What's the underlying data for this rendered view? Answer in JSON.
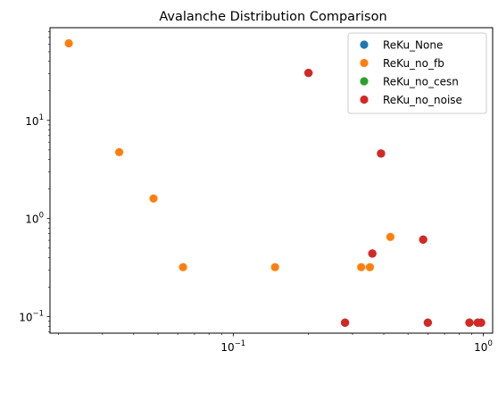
{
  "chart_data": {
    "type": "scatter",
    "title": "Avalanche Distribution Comparison",
    "xlabel": "",
    "ylabel": "",
    "xscale": "log",
    "yscale": "log",
    "xlim": [
      0.0185,
      1.09
    ],
    "ylim": [
      0.068,
      88
    ],
    "grid": false,
    "legend_position": "top-right",
    "x_major_ticks": [
      {
        "value": 0.1,
        "base": "10",
        "exp": "−1"
      },
      {
        "value": 1,
        "base": "10",
        "exp": "0"
      }
    ],
    "y_major_ticks": [
      {
        "value": 0.1,
        "base": "10",
        "exp": "−1"
      },
      {
        "value": 1,
        "base": "10",
        "exp": "0"
      },
      {
        "value": 10,
        "base": "10",
        "exp": "1"
      }
    ],
    "series": [
      {
        "name": "ReKu_None",
        "color": "#1f77b4",
        "points": [
          [
            0.2,
            30.5
          ],
          [
            0.28,
            0.087
          ],
          [
            0.36,
            0.44
          ],
          [
            0.39,
            4.6
          ],
          [
            0.575,
            0.61
          ],
          [
            0.6,
            0.087
          ],
          [
            0.88,
            0.087
          ],
          [
            0.95,
            0.087
          ],
          [
            0.98,
            0.087
          ]
        ]
      },
      {
        "name": "ReKu_no_fb",
        "color": "#ff7f0e",
        "points": [
          [
            0.022,
            61
          ],
          [
            0.035,
            4.75
          ],
          [
            0.048,
            1.6
          ],
          [
            0.063,
            0.32
          ],
          [
            0.147,
            0.32
          ],
          [
            0.2,
            30.5
          ],
          [
            0.28,
            0.087
          ],
          [
            0.325,
            0.32
          ],
          [
            0.352,
            0.32
          ],
          [
            0.36,
            0.44
          ],
          [
            0.39,
            4.6
          ],
          [
            0.425,
            0.65
          ],
          [
            0.575,
            0.61
          ],
          [
            0.6,
            0.087
          ],
          [
            0.88,
            0.087
          ],
          [
            0.95,
            0.087
          ],
          [
            0.98,
            0.087
          ]
        ]
      },
      {
        "name": "ReKu_no_cesn",
        "color": "#2ca02c",
        "points": [
          [
            0.2,
            30.5
          ],
          [
            0.28,
            0.087
          ],
          [
            0.36,
            0.44
          ],
          [
            0.39,
            4.6
          ],
          [
            0.575,
            0.61
          ],
          [
            0.6,
            0.087
          ],
          [
            0.88,
            0.087
          ],
          [
            0.95,
            0.087
          ],
          [
            0.98,
            0.087
          ]
        ]
      },
      {
        "name": "ReKu_no_noise",
        "color": "#d62728",
        "points": [
          [
            0.2,
            30.5
          ],
          [
            0.28,
            0.087
          ],
          [
            0.36,
            0.44
          ],
          [
            0.39,
            4.6
          ],
          [
            0.575,
            0.61
          ],
          [
            0.6,
            0.087
          ],
          [
            0.88,
            0.087
          ],
          [
            0.95,
            0.087
          ],
          [
            0.98,
            0.087
          ]
        ]
      }
    ]
  }
}
